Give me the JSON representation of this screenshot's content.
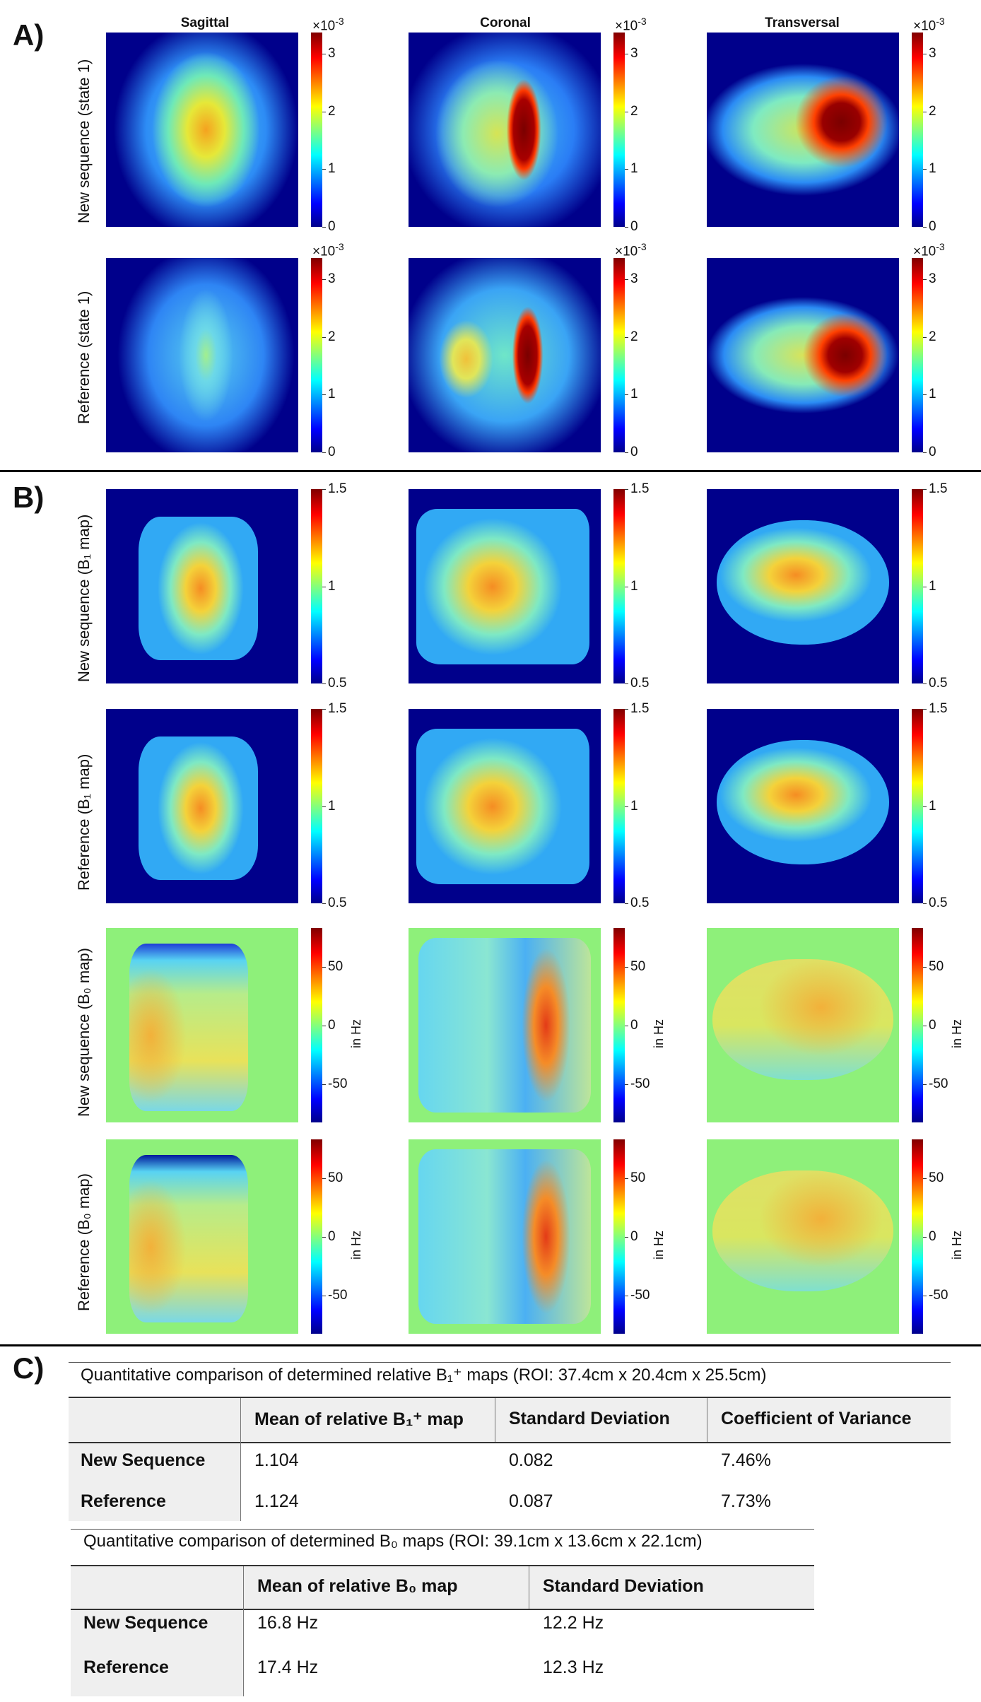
{
  "panels": {
    "a": "A)",
    "b": "B)",
    "c": "C)"
  },
  "columns": [
    "Sagittal",
    "Coronal",
    "Transversal"
  ],
  "rows": {
    "a1": "New sequence (state 1)",
    "a2": "Reference (state 1)",
    "b1": "New sequence (B₁ map)",
    "b2": "Reference (B₁ map)",
    "b3": "New sequence (B₀ map)",
    "b4": "Reference (B₀ map)"
  },
  "colorbars": {
    "sar": {
      "exponent_base": "×10",
      "exponent": "-3",
      "ticks": [
        "3",
        "2",
        "1",
        "0"
      ]
    },
    "b1": {
      "ticks": [
        "1.5",
        "1",
        "0.5"
      ]
    },
    "b0": {
      "ticks": [
        "50",
        "0",
        "-50"
      ],
      "unit": "in Hz"
    }
  },
  "table1": {
    "caption": "Quantitative comparison of determined relative B₁⁺ maps (ROI: 37.4cm x 20.4cm x 25.5cm)",
    "headers": [
      "",
      "Mean of relative B₁⁺ map",
      "Standard Deviation",
      "Coefficient of Variance"
    ],
    "rows": [
      [
        "New Sequence",
        "1.104",
        "0.082",
        "7.46%"
      ],
      [
        "Reference",
        "1.124",
        "0.087",
        "7.73%"
      ]
    ]
  },
  "table2": {
    "caption": "Quantitative comparison of determined B₀ maps (ROI: 39.1cm x 13.6cm x 22.1cm)",
    "headers": [
      "",
      "Mean of relative B₀ map",
      "Standard Deviation"
    ],
    "rows": [
      [
        "New Sequence",
        "16.8 Hz",
        "12.2 Hz"
      ],
      [
        "Reference",
        "17.4 Hz",
        "12.3 Hz"
      ]
    ]
  },
  "colors": {
    "jet_dark_blue": "#00008b",
    "b0_background": "#8ef07a",
    "table_header": "#efefef"
  }
}
